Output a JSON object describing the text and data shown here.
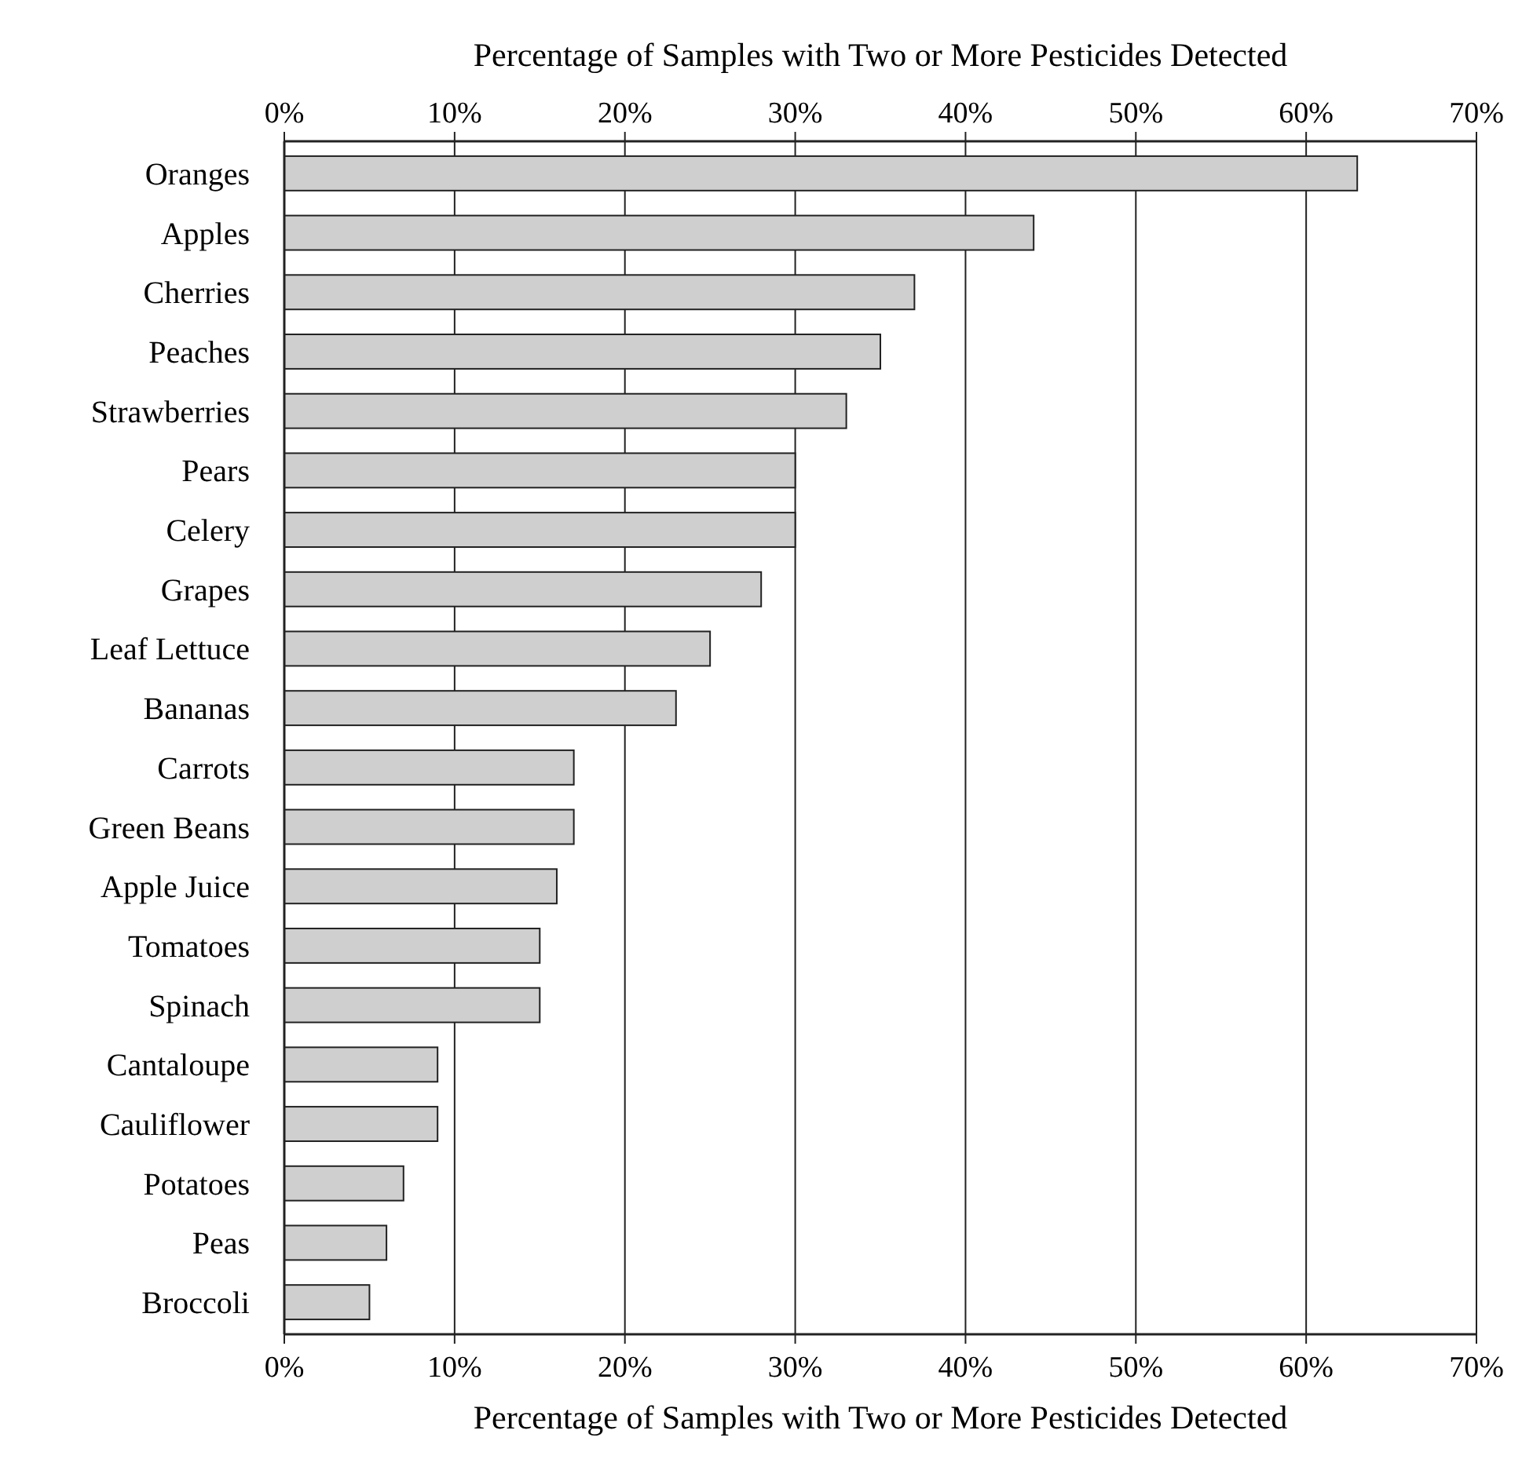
{
  "chart_data": {
    "type": "bar",
    "orientation": "horizontal",
    "xlabel": "Percentage of Samples with Two or More Pesticides Detected",
    "x2label": "Percentage of Samples with Two or More Pesticides Detected",
    "categories": [
      "Oranges",
      "Apples",
      "Cherries",
      "Peaches",
      "Strawberries",
      "Pears",
      "Celery",
      "Grapes",
      "Leaf Lettuce",
      "Bananas",
      "Carrots",
      "Green Beans",
      "Apple Juice",
      "Tomatoes",
      "Spinach",
      "Cantaloupe",
      "Cauliflower",
      "Potatoes",
      "Peas",
      "Broccoli"
    ],
    "values": [
      63,
      44,
      37,
      35,
      33,
      30,
      30,
      28,
      25,
      23,
      17,
      17,
      16,
      15,
      15,
      9,
      9,
      7,
      6,
      5
    ],
    "color": "#cfcfcf",
    "xlim": [
      0,
      70
    ],
    "xticks": [
      {
        "value": 0,
        "label": "0%"
      },
      {
        "value": 10,
        "label": "10%"
      },
      {
        "value": 20,
        "label": "20%"
      },
      {
        "value": 30,
        "label": "30%"
      },
      {
        "value": 40,
        "label": "40%"
      },
      {
        "value": 50,
        "label": "50%"
      },
      {
        "value": 60,
        "label": "60%"
      },
      {
        "value": 70,
        "label": "70%"
      }
    ],
    "x2lim": [
      0,
      70
    ],
    "x2ticks": [
      {
        "value": 0,
        "label": "0%"
      },
      {
        "value": 10,
        "label": "10%"
      },
      {
        "value": 20,
        "label": "20%"
      },
      {
        "value": 30,
        "label": "30%"
      },
      {
        "value": 40,
        "label": "40%"
      },
      {
        "value": 50,
        "label": "50%"
      },
      {
        "value": 60,
        "label": "60%"
      },
      {
        "value": 70,
        "label": "70%"
      }
    ],
    "grid": "x"
  }
}
